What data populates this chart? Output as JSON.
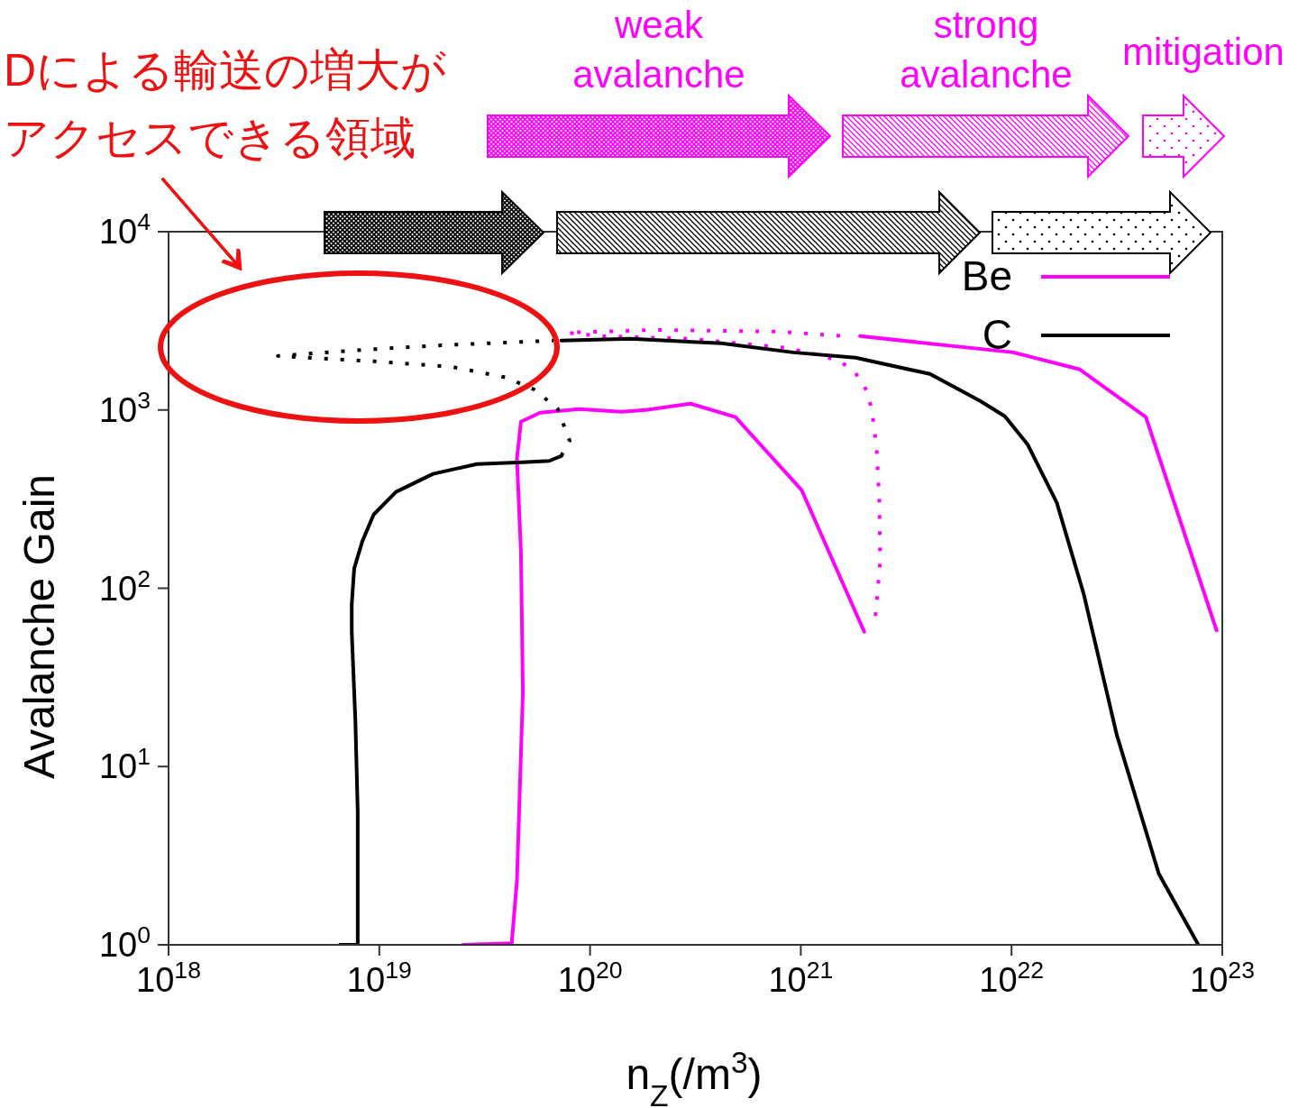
{
  "chart_data": {
    "type": "line",
    "xlabel": "n$_{Z}$(/m$^{3}$)",
    "ylabel": "Avalanche Gain",
    "log": "xy",
    "legend": "top right",
    "xlim": [
      1e+18,
      1e+23
    ],
    "ylim": [
      1,
      10000
    ],
    "xticks": [
      {
        "value": 1e+18,
        "label": "10$^{18}$"
      },
      {
        "value": 1e+19,
        "label": "10$^{19}$"
      },
      {
        "value": 1e+20,
        "label": "10$^{20}$"
      },
      {
        "value": 1e+21,
        "label": "10$^{21}$"
      },
      {
        "value": 1e+22,
        "label": "10$^{22}$"
      },
      {
        "value": 1e+23,
        "label": "10$^{23}$"
      }
    ],
    "yticks": [
      {
        "value": 1,
        "label": "10$^{0}$"
      },
      {
        "value": 10,
        "label": "10$^{1}$"
      },
      {
        "value": 100,
        "label": "10$^{2}$"
      },
      {
        "value": 1000,
        "label": "10$^{3}$"
      },
      {
        "value": 10000,
        "label": "10$^{4}$"
      }
    ],
    "annotations": [
      "Dによる輸送の増大が",
      "アクセスできる領域",
      "weak\navalanche",
      "strong\navalanche",
      "mitigation"
    ],
    "series": [
      {
        "name": "Be",
        "color": "#ff00ff",
        "x": [
          2.5e+19,
          4.25e+19,
          4.5e+19,
          4.8e+19,
          4.7e+19,
          4.5e+19,
          4.7e+19,
          5.8e+19,
          8.9e+19,
          1.41e+20,
          1.84e+20,
          3e+20,
          4.9e+20,
          1.01e+21,
          2e+21
        ],
        "values": [
          1,
          1.02,
          2.3,
          26,
          159,
          534,
          860,
          966,
          1012,
          977,
          1000,
          1085,
          912,
          355,
          57
        ]
      },
      {
        "color": "#ff00ff",
        "line_style": "dotted",
        "x": [
          2.26e+21,
          2.38e+21,
          2.36e+21,
          2.29e+21,
          2.18e+21,
          2.05e+21,
          1.82e+21,
          1.54e+21,
          1.27e+21,
          8.6e+20,
          3e+20,
          1.12e+20,
          7.8e+19,
          1.12e+20,
          2.03e+20,
          8.1e+20,
          1.6e+21
        ],
        "values": [
          70,
          140,
          302,
          607,
          988,
          1291,
          1611,
          1875,
          2010,
          2230,
          2506,
          2595,
          2718,
          2750,
          2815,
          2750,
          2595
        ]
      },
      {
        "color": "#ff00ff",
        "x": [
          1.91e+21,
          1.02e+22,
          2.11e+22,
          4.34e+22,
          9.4e+22
        ],
        "values": [
          2595,
          2104,
          1688,
          912,
          58
        ]
      },
      {
        "name": "C",
        "color": "#000000",
        "x": [
          6.5e+18,
          7.9e+18,
          7.9e+18,
          7.7e+18,
          7.4e+18,
          7.4e+18,
          7.6e+18,
          8.3e+18,
          9.4e+18,
          1.2e+19,
          1.8e+19,
          2.9e+19,
          4.8e+19,
          6.4e+19,
          7.3e+19
        ],
        "values": [
          1,
          1,
          5.6,
          18,
          57,
          81,
          129,
          183,
          259,
          347,
          438,
          497,
          509,
          518,
          552
        ]
      },
      {
        "color": "#000000",
        "line_style": "dotted",
        "x": [
          7.3e+19,
          8e+19,
          7e+19,
          5.4e+19,
          4e+19,
          2.2e+19,
          9.4e+18,
          3.3e+18,
          8.7e+18,
          2e+19,
          6.7e+19
        ],
        "values": [
          552,
          673,
          1024,
          1307,
          1520,
          1747,
          1875,
          2010,
          2180,
          2310,
          2450
        ]
      },
      {
        "color": "#000000",
        "x": [
          7.3e+19,
          1.56e+20,
          4.2e+20,
          9.2e+20,
          1.82e+21,
          4.1e+21,
          7.1e+21,
          9.3e+21,
          1.19e+22,
          1.64e+22,
          2.2e+22,
          3.16e+22,
          5e+22,
          7.7e+22
        ],
        "values": [
          2450,
          2506,
          2365,
          2104,
          1963,
          1592,
          1124,
          922,
          643,
          302,
          93,
          15,
          2.5,
          1
        ]
      }
    ]
  }
}
